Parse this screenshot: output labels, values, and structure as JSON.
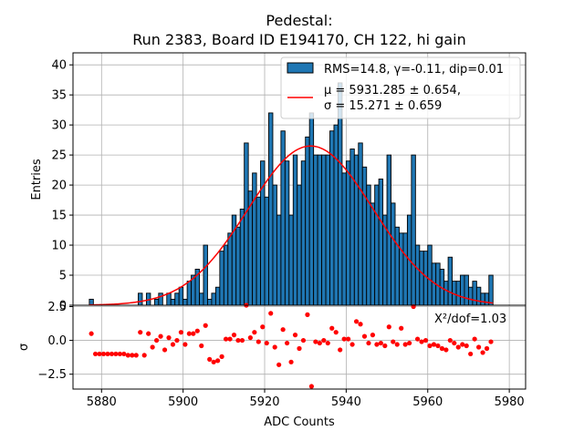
{
  "chart_data": {
    "type": "bar",
    "title_line1": "Pedestal:",
    "title_line2": "Run 2383, Board ID E194170, CH 122, hi gain",
    "xlabel": "ADC Counts",
    "ylabel_top": "Entries",
    "ylabel_bottom": "σ",
    "xlim": [
      5873,
      5984
    ],
    "ylim_top": [
      0,
      42
    ],
    "ylim_bottom": [
      -3.6,
      2.6
    ],
    "xticks": [
      "5880",
      "5900",
      "5920",
      "5940",
      "5960",
      "5980"
    ],
    "yticks_top": [
      "0",
      "5",
      "10",
      "15",
      "20",
      "25",
      "30",
      "35",
      "40"
    ],
    "yticks_bottom": [
      "2.5",
      "0.0",
      "−2.5"
    ],
    "bin_start": 5877,
    "bin_width": 1,
    "counts": [
      1,
      0,
      0,
      0,
      0,
      0,
      0,
      0,
      0,
      0,
      0,
      0,
      2,
      0,
      2,
      0,
      1,
      2,
      0,
      2,
      1,
      2,
      3,
      1,
      4,
      5,
      6,
      2,
      10,
      1,
      2,
      3,
      9,
      10,
      12,
      15,
      13,
      16,
      27,
      19,
      22,
      18,
      24,
      18,
      32,
      20,
      15,
      29,
      24,
      15,
      25,
      20,
      24,
      28,
      32,
      25,
      25,
      25,
      25,
      29,
      30,
      37,
      22,
      24,
      26,
      25,
      27,
      23,
      20,
      17,
      20,
      21,
      15,
      25,
      17,
      13,
      12,
      12,
      15,
      25,
      10,
      9,
      9,
      10,
      7,
      7,
      6,
      4,
      8,
      4,
      4,
      5,
      5,
      3,
      4,
      3,
      2,
      2,
      5
    ],
    "residuals": [
      0.5,
      -1.0,
      -1.0,
      -1.0,
      -1.0,
      -1.0,
      -1.0,
      -1.0,
      -1.0,
      -1.1,
      -1.1,
      -1.1,
      0.6,
      -1.1,
      0.5,
      -0.5,
      0.0,
      0.3,
      -0.7,
      0.2,
      -0.3,
      0.0,
      0.6,
      -0.3,
      0.5,
      0.5,
      0.7,
      -0.4,
      1.1,
      -1.4,
      -1.6,
      -1.5,
      -1.2,
      0.1,
      0.1,
      0.4,
      0.0,
      0.0,
      2.6,
      0.2,
      0.6,
      -0.1,
      1.0,
      -0.2,
      2.0,
      -0.5,
      -1.8,
      0.8,
      -0.2,
      -1.6,
      0.4,
      -0.6,
      0.0,
      1.9,
      -3.4,
      -0.1,
      -0.2,
      0.0,
      -0.2,
      0.9,
      0.6,
      -0.7,
      0.1,
      0.1,
      -0.3,
      1.4,
      1.2,
      0.3,
      -0.2,
      0.4,
      -0.3,
      -0.2,
      -0.4,
      1.0,
      -0.1,
      -0.3,
      0.9,
      -0.3,
      -0.2,
      2.5,
      0.1,
      -0.1,
      0.0,
      -0.4,
      -0.3,
      -0.4,
      -0.6,
      -0.7,
      0.0,
      -0.2,
      -0.5,
      -0.3,
      -0.4,
      -1.0,
      0.1,
      -0.5,
      -0.9,
      -0.6,
      -0.1
    ],
    "fit": {
      "mu": 5931.285,
      "sigma": 15.271,
      "amplitude": 26.5
    },
    "legend": {
      "hist_label": "RMS=14.8, γ=-0.11, dip=0.01",
      "fit_label_line1": "μ = 5931.285 ± 0.654,",
      "fit_label_line2": "σ = 15.271 ± 0.659",
      "position": "top-right"
    },
    "chi2_text": "X²/dof=1.03",
    "grid": true,
    "colors": {
      "bar": "#1f77b4",
      "edge": "#000000",
      "fit": "#ff0000",
      "residual": "#ff0000",
      "grid": "#b0b0b0"
    }
  }
}
